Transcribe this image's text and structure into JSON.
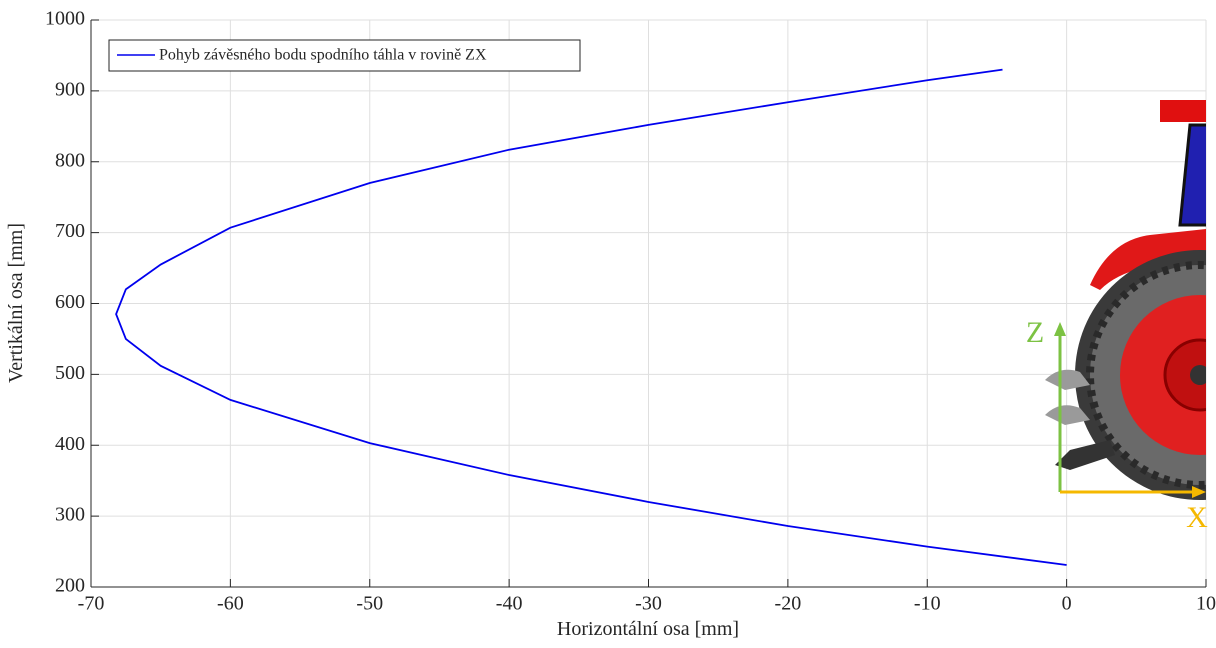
{
  "chart_data": {
    "type": "line",
    "xlabel": "Horizontální osa [mm]",
    "ylabel": "Vertikální osa [mm]",
    "xlim": [
      -70,
      10
    ],
    "ylim": [
      200,
      1000
    ],
    "xticks": [
      -70,
      -60,
      -50,
      -40,
      -30,
      -20,
      -10,
      0,
      10
    ],
    "yticks": [
      200,
      300,
      400,
      500,
      600,
      700,
      800,
      900,
      1000
    ],
    "grid": true,
    "legend": "upper left",
    "series": [
      {
        "name": "Pohyb závěsného bodu spodního táhla v rovině ZX",
        "color": "#0000ee",
        "x": [
          0,
          -10,
          -20,
          -30,
          -40,
          -50,
          -60,
          -65,
          -67.5,
          -68.2,
          -67.5,
          -65,
          -60,
          -50,
          -40,
          -30,
          -20,
          -10,
          -4.6
        ],
        "values": [
          231,
          257,
          286,
          320,
          358,
          403,
          464,
          512,
          550,
          585,
          620,
          655,
          707,
          770,
          817,
          852,
          884,
          915,
          930
        ]
      }
    ],
    "annotations": [
      "Z",
      "X"
    ]
  }
}
